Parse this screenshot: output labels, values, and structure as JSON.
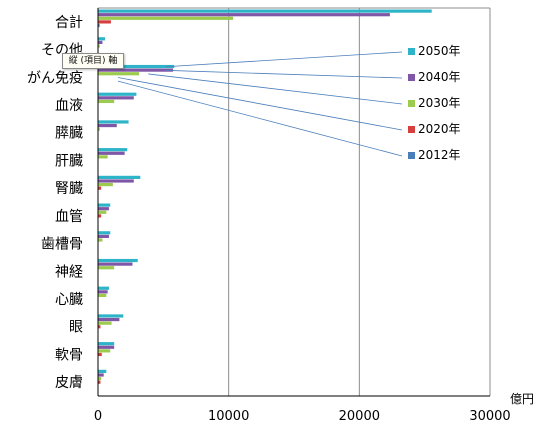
{
  "chart_data": {
    "type": "bar",
    "orientation": "horizontal",
    "categories": [
      "合計",
      "その他",
      "がん免疫",
      "血液",
      "膵臓",
      "肝臓",
      "腎臓",
      "血管",
      "歯槽骨",
      "神経",
      "心臓",
      "眼",
      "軟骨",
      "皮膚"
    ],
    "series": [
      {
        "name": "2050年",
        "color": "#2db4c8",
        "values": [
          25500,
          500,
          5800,
          2900,
          2300,
          2200,
          3200,
          900,
          900,
          3000,
          800,
          1900,
          1200,
          600
        ]
      },
      {
        "name": "2040年",
        "color": "#8057a6",
        "values": [
          22300,
          300,
          5700,
          2700,
          1400,
          2000,
          2700,
          800,
          800,
          2600,
          700,
          1600,
          1200,
          400
        ]
      },
      {
        "name": "2030年",
        "color": "#9ccb4e",
        "values": [
          10300,
          100,
          3100,
          1200,
          100,
          700,
          1100,
          600,
          300,
          1200,
          600,
          1000,
          900,
          200
        ]
      },
      {
        "name": "2020年",
        "color": "#d63f3d",
        "values": [
          950,
          0,
          0,
          0,
          0,
          0,
          200,
          200,
          0,
          0,
          0,
          150,
          250,
          150
        ]
      },
      {
        "name": "2012年",
        "color": "#4a7ebb",
        "values": [
          90,
          0,
          0,
          0,
          0,
          0,
          0,
          0,
          0,
          0,
          0,
          0,
          0,
          0
        ]
      }
    ],
    "xlim": [
      0,
      30000
    ],
    "xticks": [
      "0",
      "10000",
      "20000",
      "30000"
    ],
    "unit_label": "億円",
    "grid": true,
    "legend_placement": "right"
  },
  "tooltip": {
    "text": "縦 (項目) 軸"
  }
}
